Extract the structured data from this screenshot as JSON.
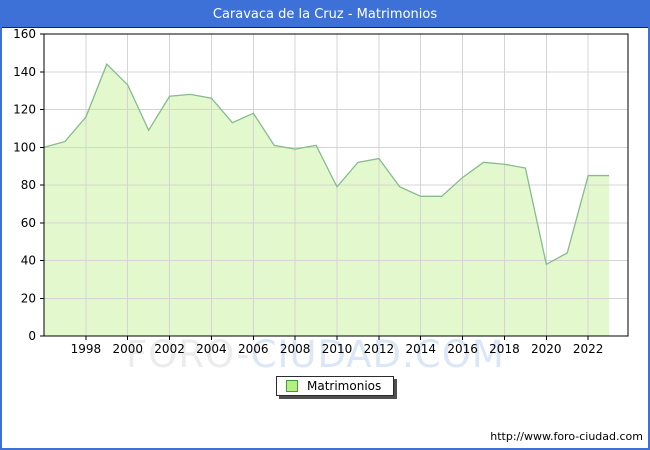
{
  "title_bar": {
    "text": "Caravaca de la Cruz - Matrimonios",
    "bg_color": "#3e71d8",
    "text_color": "#ffffff"
  },
  "chart_data": {
    "type": "area",
    "title": "Caravaca de la Cruz - Matrimonios",
    "xlabel": "",
    "ylabel": "",
    "x": [
      1996,
      1997,
      1998,
      1999,
      2000,
      2001,
      2002,
      2003,
      2004,
      2005,
      2006,
      2007,
      2008,
      2009,
      2010,
      2011,
      2012,
      2013,
      2014,
      2015,
      2016,
      2017,
      2018,
      2019,
      2020,
      2021,
      2022,
      2023
    ],
    "series": [
      {
        "name": "Matrimonios",
        "values": [
          100,
          103,
          116,
          144,
          133,
          109,
          127,
          128,
          126,
          113,
          118,
          101,
          99,
          101,
          79,
          92,
          94,
          79,
          74,
          74,
          84,
          92,
          91,
          89,
          38,
          44,
          85,
          85
        ]
      }
    ],
    "ylim": [
      0,
      160
    ],
    "yticks": [
      0,
      20,
      40,
      60,
      80,
      100,
      120,
      140,
      160
    ],
    "xticks": [
      1998,
      2000,
      2002,
      2004,
      2006,
      2008,
      2010,
      2012,
      2014,
      2016,
      2018,
      2020,
      2022
    ],
    "grid": true,
    "legend_position": "bottom-center",
    "fill_color": "#e4f8cd",
    "line_color": "#86bb8e",
    "grid_color": "#d4d4d4"
  },
  "legend": {
    "label": "Matrimonios",
    "swatch_fill": "#b5ef7d",
    "swatch_border": "#3c9b3c"
  },
  "watermark": {
    "left_part": "FORO-",
    "right_part": "CIUDAD.COM"
  },
  "footer": {
    "url": "http://www.foro-ciudad.com"
  }
}
